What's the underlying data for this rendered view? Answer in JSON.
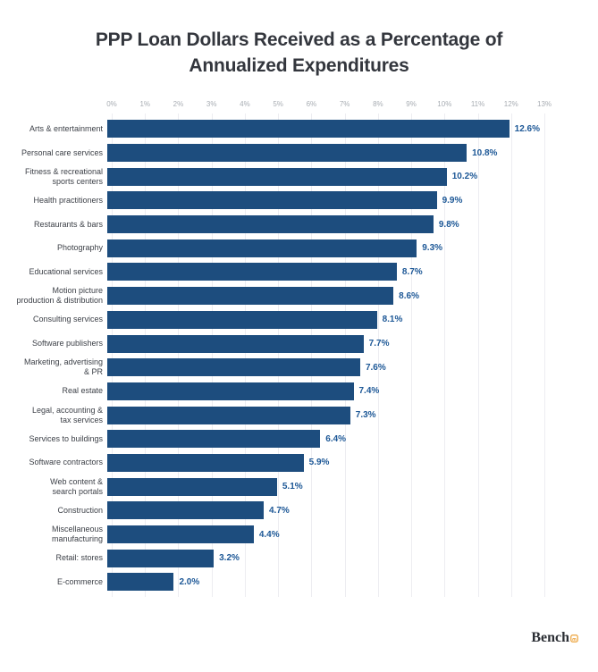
{
  "chart_data": {
    "type": "bar",
    "orientation": "horizontal",
    "title": "PPP Loan Dollars Received as a Percentage of Annualized Expenditures",
    "categories": [
      "Arts & entertainment",
      "Personal care services",
      "Fitness & recreational\nsports centers",
      "Health practitioners",
      "Restaurants & bars",
      "Photography",
      "Educational services",
      "Motion picture\nproduction & distribution",
      "Consulting services",
      "Software publishers",
      "Marketing, advertising\n& PR",
      "Real estate",
      "Legal, accounting &\ntax services",
      "Services to buildings",
      "Software contractors",
      "Web content &\nsearch portals",
      "Construction",
      "Miscellaneous\nmanufacturing",
      "Retail: stores",
      "E-commerce"
    ],
    "values": [
      12.6,
      10.8,
      10.2,
      9.9,
      9.8,
      9.3,
      8.7,
      8.6,
      8.1,
      7.7,
      7.6,
      7.4,
      7.3,
      6.4,
      5.9,
      5.1,
      4.7,
      4.4,
      3.2,
      2.0
    ],
    "value_labels": [
      "12.6%",
      "10.8%",
      "10.2%",
      "9.9%",
      "9.8%",
      "9.3%",
      "8.7%",
      "8.6%",
      "8.1%",
      "7.7%",
      "7.6%",
      "7.4%",
      "7.3%",
      "6.4%",
      "5.9%",
      "5.1%",
      "4.7%",
      "4.4%",
      "3.2%",
      "2.0%"
    ],
    "x_ticks": [
      "0%",
      "1%",
      "2%",
      "3%",
      "4%",
      "5%",
      "6%",
      "7%",
      "8%",
      "9%",
      "10%",
      "11%",
      "12%",
      "13%"
    ],
    "xlim": [
      0,
      13
    ],
    "grid": true,
    "legend": false,
    "bar_color": "#1d4d7e",
    "value_label_color": "#1c5796",
    "tick_label_color": "#a8adb3",
    "category_label_color": "#3d4148",
    "gridline_color": "#ededf1"
  },
  "footer": {
    "brand": "Bench",
    "icon_color": "#eca23a"
  }
}
